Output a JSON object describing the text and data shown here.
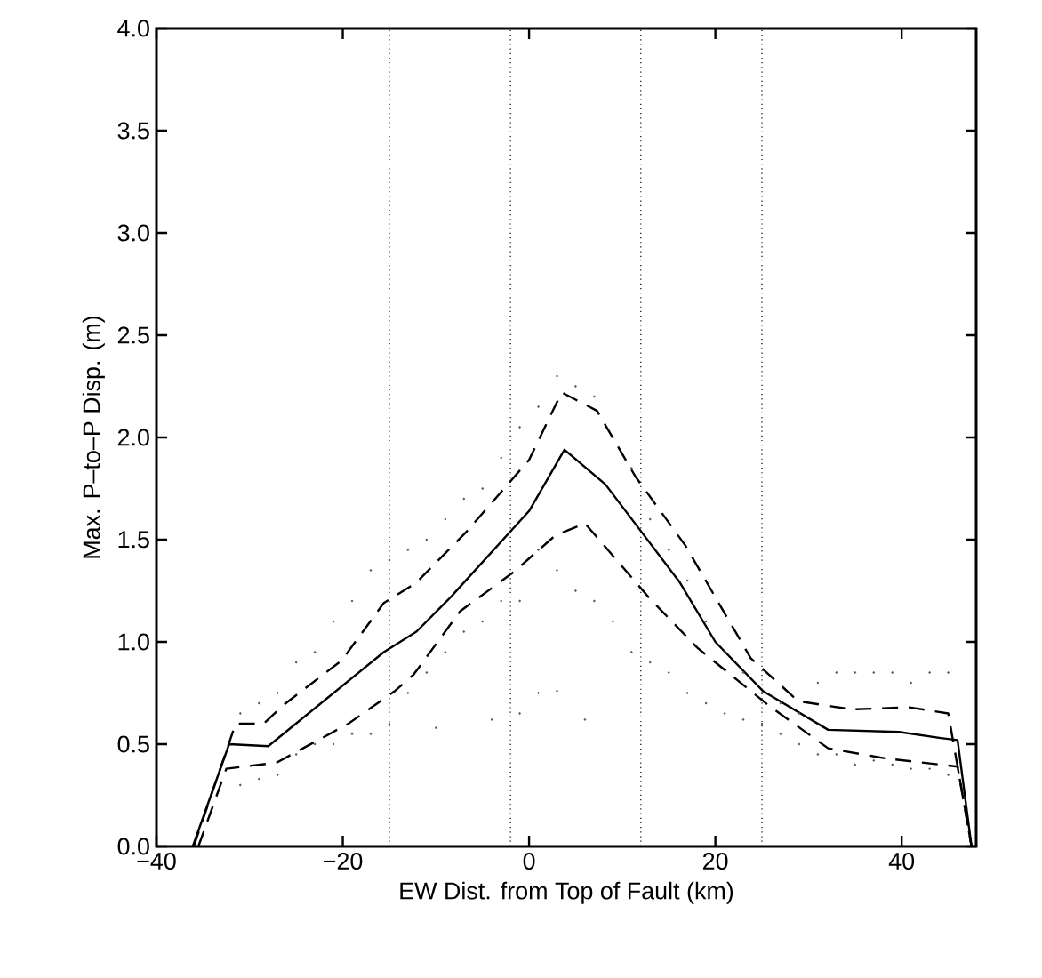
{
  "chart_data": {
    "type": "line",
    "xlabel": "EW Dist. from Top of Fault (km)",
    "ylabel": "Max. P–to–P Disp. (m)",
    "xlim": [
      -40,
      48
    ],
    "xticks": [
      {
        "value": -40,
        "label": "−40"
      },
      {
        "value": -20,
        "label": "−20"
      },
      0,
      20,
      40
    ],
    "ylim": [
      0,
      4
    ],
    "yticks": [
      {
        "value": 0,
        "label": "0.0"
      },
      {
        "value": 0.5,
        "label": "0.5"
      },
      {
        "value": 1,
        "label": "1.0"
      },
      {
        "value": 1.5,
        "label": "1.5"
      },
      {
        "value": 2,
        "label": "2.0"
      },
      {
        "value": 2.5,
        "label": "2.5"
      },
      {
        "value": 3,
        "label": "3.0"
      },
      {
        "value": 3.5,
        "label": "3.5"
      },
      {
        "value": 4,
        "label": "4.0"
      }
    ],
    "grid": false,
    "series": [
      {
        "type": "scatter",
        "color": "#555555",
        "x": [
          -31,
          -31,
          -29,
          -29,
          -27,
          -27,
          -25,
          -25,
          -23,
          -23,
          -21,
          -21,
          -19,
          -19,
          -17,
          -17,
          -15,
          -15,
          -13,
          -13,
          -11,
          -11,
          -9,
          -9,
          -7,
          -7,
          -5,
          -5,
          -3,
          -3,
          -1,
          -1,
          1,
          1,
          3,
          3,
          5,
          5,
          7,
          7,
          9,
          9,
          11,
          11,
          13,
          13,
          15,
          15,
          17,
          17,
          19,
          19,
          21,
          21,
          23,
          23,
          25,
          25,
          27,
          27,
          29,
          29,
          31,
          31,
          33,
          33,
          35,
          35,
          37,
          37,
          39,
          39,
          41,
          41,
          43,
          43,
          45,
          45,
          -10,
          -4,
          -1,
          1,
          3,
          6
        ],
        "values": [
          0.65,
          0.3,
          0.7,
          0.33,
          0.75,
          0.35,
          0.9,
          0.45,
          0.95,
          0.5,
          1.1,
          0.5,
          1.2,
          0.55,
          1.35,
          0.55,
          1.4,
          0.6,
          1.45,
          0.75,
          1.5,
          0.85,
          1.6,
          0.95,
          1.7,
          1.05,
          1.75,
          1.1,
          1.9,
          1.2,
          2.05,
          1.2,
          2.15,
          1.45,
          2.3,
          1.35,
          2.25,
          1.25,
          2.2,
          1.2,
          2.0,
          1.1,
          1.85,
          0.95,
          1.6,
          0.9,
          1.45,
          0.85,
          1.3,
          0.75,
          1.1,
          0.7,
          0.95,
          0.65,
          0.85,
          0.62,
          0.75,
          0.6,
          0.7,
          0.55,
          0.65,
          0.5,
          0.8,
          0.45,
          0.85,
          0.45,
          0.85,
          0.4,
          0.85,
          0.42,
          0.85,
          0.4,
          0.8,
          0.38,
          0.85,
          0.38,
          0.85,
          0.35,
          0.58,
          0.62,
          0.65,
          0.75,
          0.76,
          0.62
        ]
      },
      {
        "line_style": "solid",
        "color": "#000000",
        "x": [
          -36.1,
          -32.2,
          -28,
          -15.6,
          -12.1,
          -8.6,
          0,
          3.8,
          8.2,
          16.2,
          20,
          25.1,
          32.1,
          39.7,
          44.2,
          46,
          47.5
        ],
        "values": [
          0,
          0.5,
          0.49,
          0.95,
          1.05,
          1.21,
          1.64,
          1.94,
          1.77,
          1.29,
          1,
          0.76,
          0.57,
          0.56,
          0.53,
          0.52,
          0
        ]
      },
      {
        "line_style": "dashed",
        "color": "#000000",
        "x": [
          -36,
          -31.5,
          -28.5,
          -26.4,
          -20.1,
          -15.6,
          -12.1,
          -6.7,
          0,
          3.5,
          7.3,
          11.4,
          16.8,
          23.8,
          28.9,
          34.6,
          40.8,
          45,
          47.5
        ],
        "values": [
          0,
          0.6,
          0.6,
          0.69,
          0.91,
          1.19,
          1.29,
          1.54,
          1.89,
          2.22,
          2.13,
          1.81,
          1.47,
          0.92,
          0.71,
          0.67,
          0.68,
          0.65,
          0
        ]
      },
      {
        "line_style": "dashed",
        "color": "#000000",
        "x": [
          -35.5,
          -32.5,
          -27.1,
          -19.4,
          -14.4,
          -12.4,
          -7.4,
          -1.7,
          2.8,
          6,
          13,
          18.1,
          25.7,
          32.1,
          38.3,
          44.2,
          46,
          47.5
        ],
        "values": [
          0,
          0.38,
          0.41,
          0.6,
          0.76,
          0.84,
          1.15,
          1.34,
          1.52,
          1.58,
          1.21,
          0.97,
          0.69,
          0.48,
          0.43,
          0.4,
          0.39,
          0
        ]
      }
    ],
    "ref_lines": [
      {
        "axis": "x",
        "value": -15,
        "color": "#000000",
        "line_style": "dotted"
      },
      {
        "axis": "x",
        "value": -2,
        "color": "#000000",
        "line_style": "dotted"
      },
      {
        "axis": "x",
        "value": 12,
        "color": "#000000",
        "line_style": "dotted"
      },
      {
        "axis": "x",
        "value": 25,
        "color": "#000000",
        "line_style": "dotted"
      }
    ]
  }
}
